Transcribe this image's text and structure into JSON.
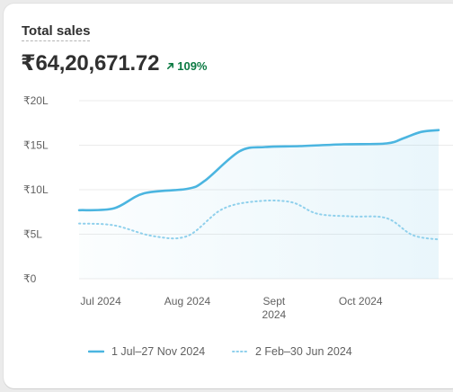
{
  "card": {
    "title": "Total sales",
    "value": "₹64,20,671.72",
    "change": "109%",
    "change_icon": "arrow-up-right-icon"
  },
  "colors": {
    "primary": "#4bb5e0",
    "comparison": "#8fd0ec",
    "positive": "#0c7a43",
    "grid": "#ebebeb"
  },
  "chart_data": {
    "type": "line",
    "title": "Total sales",
    "ylim": [
      0,
      20
    ],
    "yticks": [
      {
        "value": 0,
        "label": "₹0"
      },
      {
        "value": 5,
        "label": "₹5L"
      },
      {
        "value": 10,
        "label": "₹10L"
      },
      {
        "value": 15,
        "label": "₹15L"
      },
      {
        "value": 20,
        "label": "₹20L"
      }
    ],
    "xticks": [
      {
        "x": 0,
        "label": [
          "Jul 2024"
        ]
      },
      {
        "x": 1,
        "label": [
          "Aug 2024"
        ]
      },
      {
        "x": 2,
        "label": [
          "Sept",
          "2024"
        ]
      },
      {
        "x": 3,
        "label": [
          "Oct 2024"
        ]
      }
    ],
    "xlim": [
      -0.25,
      3.9
    ],
    "series": [
      {
        "name": "1 Jul–27 Nov 2024",
        "style": "solid",
        "x": [
          -0.25,
          0.15,
          0.5,
          1.0,
          1.2,
          1.6,
          1.9,
          2.3,
          2.8,
          3.3,
          3.5,
          3.7,
          3.9
        ],
        "y": [
          7.7,
          7.9,
          9.6,
          10.1,
          11.0,
          14.3,
          14.8,
          14.9,
          15.1,
          15.2,
          15.8,
          16.5,
          16.7
        ]
      },
      {
        "name": "2 Feb–30 Jun 2024",
        "style": "dotted",
        "x": [
          -0.25,
          0.15,
          0.6,
          1.0,
          1.4,
          1.8,
          2.2,
          2.5,
          2.9,
          3.3,
          3.6,
          3.9
        ],
        "y": [
          6.2,
          6.0,
          4.8,
          4.8,
          7.8,
          8.7,
          8.6,
          7.3,
          7.0,
          6.8,
          4.9,
          4.4
        ]
      }
    ],
    "legend_position": "bottom",
    "grid": true
  }
}
